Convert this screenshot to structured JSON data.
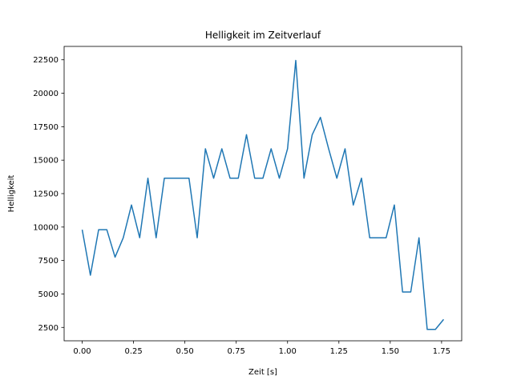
{
  "chart_data": {
    "type": "line",
    "title": "Helligkeit im Zeitverlauf",
    "xlabel": "Zeit [s]",
    "ylabel": "Helligkeit",
    "xlim": [
      -0.088,
      1.848
    ],
    "ylim": [
      1500,
      23500
    ],
    "xticks": [
      0.0,
      0.25,
      0.5,
      0.75,
      1.0,
      1.25,
      1.5,
      1.75
    ],
    "xtick_labels": [
      "0.00",
      "0.25",
      "0.50",
      "0.75",
      "1.00",
      "1.25",
      "1.50",
      "1.75"
    ],
    "yticks": [
      2500,
      5000,
      7500,
      10000,
      12500,
      15000,
      17500,
      20000,
      22500
    ],
    "ytick_labels": [
      "2500",
      "5000",
      "7500",
      "10000",
      "12500",
      "15000",
      "17500",
      "20000",
      "22500"
    ],
    "grid": false,
    "series": [
      {
        "color": "#1f77b4",
        "x": [
          0.0,
          0.04,
          0.08,
          0.12,
          0.16,
          0.2,
          0.24,
          0.28,
          0.32,
          0.36,
          0.4,
          0.44,
          0.48,
          0.52,
          0.56,
          0.6,
          0.64,
          0.68,
          0.72,
          0.76,
          0.8,
          0.84,
          0.88,
          0.92,
          0.96,
          1.0,
          1.04,
          1.08,
          1.12,
          1.16,
          1.2,
          1.24,
          1.28,
          1.32,
          1.36,
          1.4,
          1.44,
          1.48,
          1.52,
          1.56,
          1.6,
          1.64,
          1.68,
          1.72,
          1.76
        ],
        "y": [
          9800,
          6400,
          9800,
          9800,
          7750,
          9200,
          11650,
          9200,
          13650,
          9200,
          13650,
          13650,
          13650,
          13650,
          9200,
          15850,
          13650,
          15850,
          13650,
          13650,
          16900,
          13650,
          13650,
          15850,
          13650,
          15850,
          22450,
          13650,
          16900,
          18200,
          15850,
          13650,
          15850,
          11650,
          13650,
          9200,
          9200,
          9200,
          11650,
          5150,
          5150,
          9200,
          2350,
          2350,
          3100
        ]
      }
    ]
  }
}
